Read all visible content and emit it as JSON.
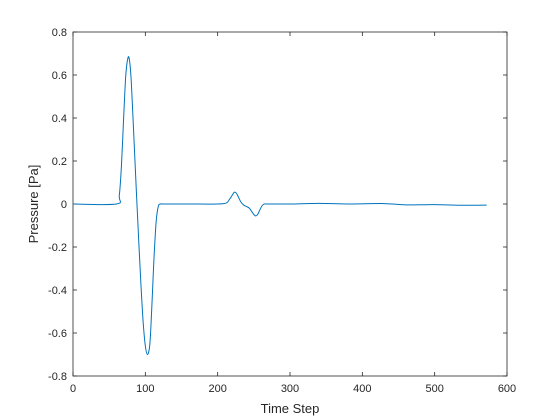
{
  "chart_data": {
    "type": "line",
    "xlabel": "Time Step",
    "ylabel": "Pressure [Pa]",
    "xlim": [
      0,
      600
    ],
    "ylim": [
      -0.8,
      0.8
    ],
    "xticks": [
      0,
      100,
      200,
      300,
      400,
      500,
      600
    ],
    "yticks": [
      -0.8,
      -0.6,
      -0.4,
      -0.2,
      0,
      0.2,
      0.4,
      0.6,
      0.8
    ],
    "ytick_labels": [
      "-0.8",
      "-0.6",
      "-0.4",
      "-0.2",
      "0",
      "0.2",
      "0.4",
      "0.6",
      "0.8"
    ],
    "grid": false,
    "line_color": "#0072BD",
    "series": [
      {
        "x": [
          0,
          60,
          64,
          67,
          70,
          73,
          76,
          78,
          80,
          82,
          85,
          88,
          91,
          94,
          97,
          100,
          103,
          106,
          108,
          110,
          112,
          115,
          118,
          121,
          124,
          128,
          160,
          200,
          212,
          216,
          220,
          223,
          226,
          229,
          232,
          236,
          240,
          244,
          248,
          252,
          255,
          258,
          261,
          264,
          266,
          270,
          300,
          340,
          380,
          430,
          460,
          500,
          540,
          572
        ],
        "y": [
          0,
          0,
          0.04,
          0.18,
          0.4,
          0.6,
          0.68,
          0.67,
          0.6,
          0.47,
          0.25,
          0.03,
          -0.18,
          -0.38,
          -0.55,
          -0.66,
          -0.7,
          -0.66,
          -0.55,
          -0.4,
          -0.25,
          -0.08,
          -0.01,
          0,
          0,
          0,
          0,
          0,
          0.005,
          0.02,
          0.04,
          0.055,
          0.05,
          0.03,
          0.01,
          -0.005,
          -0.012,
          -0.02,
          -0.04,
          -0.055,
          -0.05,
          -0.03,
          -0.01,
          0,
          0,
          0,
          0,
          0.003,
          0,
          0.002,
          -0.004,
          -0.003,
          -0.006,
          -0.005
        ]
      }
    ]
  }
}
